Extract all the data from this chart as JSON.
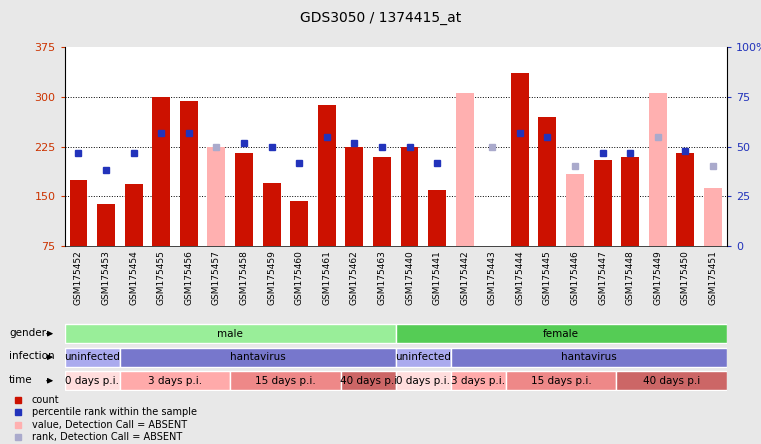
{
  "title": "GDS3050 / 1374415_at",
  "samples": [
    "GSM175452",
    "GSM175453",
    "GSM175454",
    "GSM175455",
    "GSM175456",
    "GSM175457",
    "GSM175458",
    "GSM175459",
    "GSM175460",
    "GSM175461",
    "GSM175462",
    "GSM175463",
    "GSM175440",
    "GSM175441",
    "GSM175442",
    "GSM175443",
    "GSM175444",
    "GSM175445",
    "GSM175446",
    "GSM175447",
    "GSM175448",
    "GSM175449",
    "GSM175450",
    "GSM175451"
  ],
  "count_values": [
    175,
    138,
    168,
    300,
    294,
    null,
    215,
    170,
    143,
    288,
    225,
    210,
    225,
    160,
    null,
    null,
    335,
    270,
    null,
    205,
    210,
    null,
    215,
    null
  ],
  "rank_values": [
    47,
    38,
    47,
    57,
    57,
    null,
    52,
    50,
    42,
    55,
    52,
    50,
    50,
    42,
    null,
    null,
    57,
    55,
    null,
    47,
    47,
    null,
    48,
    null
  ],
  "absent_count_values": [
    null,
    null,
    null,
    null,
    null,
    225,
    null,
    null,
    null,
    null,
    null,
    null,
    null,
    null,
    305,
    null,
    null,
    null,
    183,
    null,
    null,
    305,
    null,
    163
  ],
  "absent_rank_values": [
    null,
    null,
    null,
    null,
    null,
    50,
    null,
    null,
    null,
    null,
    null,
    null,
    null,
    null,
    null,
    50,
    null,
    null,
    40,
    null,
    null,
    55,
    null,
    40
  ],
  "y_min": 75,
  "y_max": 375,
  "y_ticks": [
    75,
    150,
    225,
    300,
    375
  ],
  "y_right_ticks": [
    0,
    25,
    50,
    75,
    100
  ],
  "bar_color": "#cc1100",
  "rank_color": "#2233bb",
  "absent_bar_color": "#ffb0b0",
  "absent_rank_color": "#aaaacc",
  "gender_male_color": "#99ee99",
  "gender_female_color": "#55cc55",
  "infection_uninfected_color": "#aaaaee",
  "infection_hantavirus_color": "#7777cc",
  "time_0days_color": "#ffdddd",
  "time_3days_color": "#ffaaaa",
  "time_15days_color": "#ee8888",
  "time_40days_color": "#cc6666",
  "bg_color": "#e8e8e8",
  "plot_bg_color": "#ffffff",
  "infection_groups": [
    {
      "label": "uninfected",
      "start": 0,
      "end": 1,
      "color": "#aaaaee"
    },
    {
      "label": "hantavirus",
      "start": 2,
      "end": 11,
      "color": "#7777cc"
    },
    {
      "label": "uninfected",
      "start": 12,
      "end": 13,
      "color": "#aaaaee"
    },
    {
      "label": "hantavirus",
      "start": 14,
      "end": 23,
      "color": "#7777cc"
    }
  ],
  "time_groups": [
    {
      "label": "0 days p.i.",
      "start": 0,
      "end": 1,
      "color": "#ffdddd"
    },
    {
      "label": "3 days p.i.",
      "start": 2,
      "end": 5,
      "color": "#ffaaaa"
    },
    {
      "label": "15 days p.i.",
      "start": 6,
      "end": 9,
      "color": "#ee8888"
    },
    {
      "label": "40 days p.i",
      "start": 10,
      "end": 11,
      "color": "#cc6666"
    },
    {
      "label": "0 days p.i.",
      "start": 12,
      "end": 13,
      "color": "#ffdddd"
    },
    {
      "label": "3 days p.i.",
      "start": 14,
      "end": 15,
      "color": "#ffaaaa"
    },
    {
      "label": "15 days p.i.",
      "start": 16,
      "end": 19,
      "color": "#ee8888"
    },
    {
      "label": "40 days p.i",
      "start": 20,
      "end": 23,
      "color": "#cc6666"
    }
  ]
}
